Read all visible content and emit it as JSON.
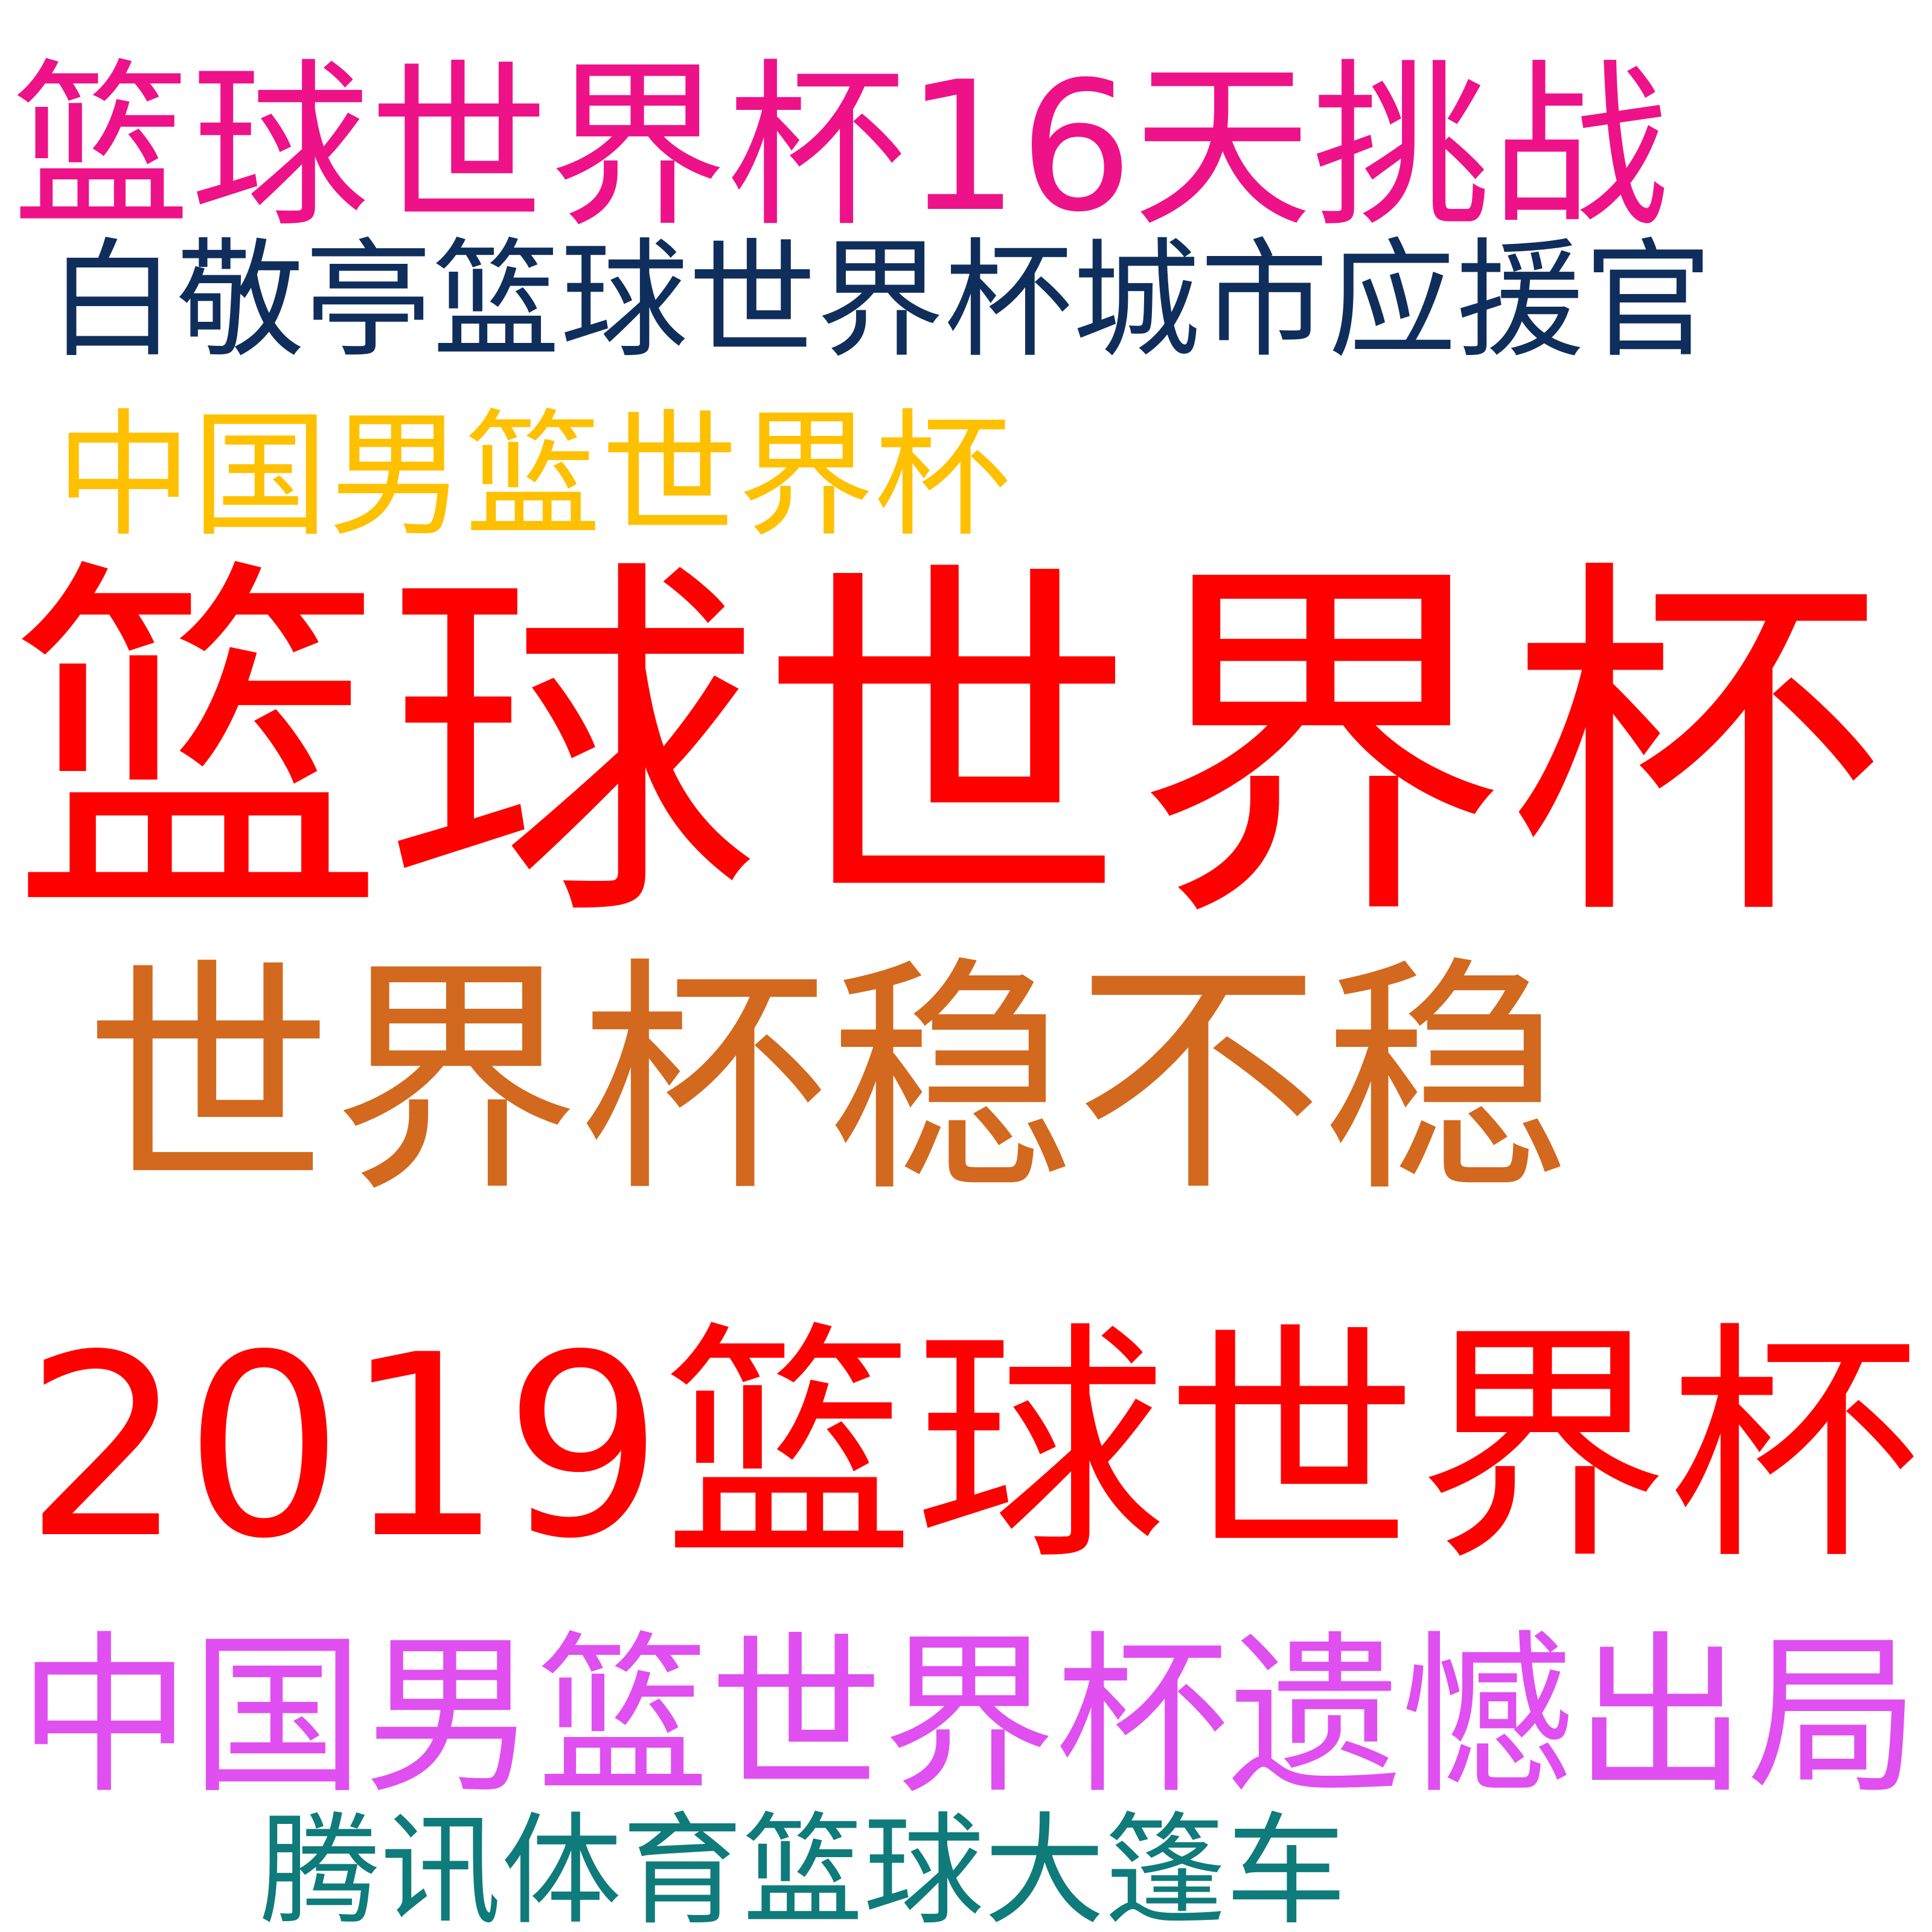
{
  "phrases": [
    {
      "text": "篮球世界杯16天挑战",
      "color": "#EE1289"
    },
    {
      "text": "白敬亭篮球世界杯城市应援官",
      "color": "#0F2E5C"
    },
    {
      "text": "中国男篮世界杯",
      "color": "#FFC000"
    },
    {
      "text": "篮球世界杯",
      "color": "#FF0000"
    },
    {
      "text": "世界杯稳不稳",
      "color": "#D2691E"
    },
    {
      "text": "2019篮球世界杯",
      "color": "#FF0000"
    },
    {
      "text": "中国男篮世界杯遗憾出局",
      "color": "#E04FF0"
    },
    {
      "text": "腾讯体育篮球大篷车",
      "color": "#0F7B7B"
    }
  ]
}
